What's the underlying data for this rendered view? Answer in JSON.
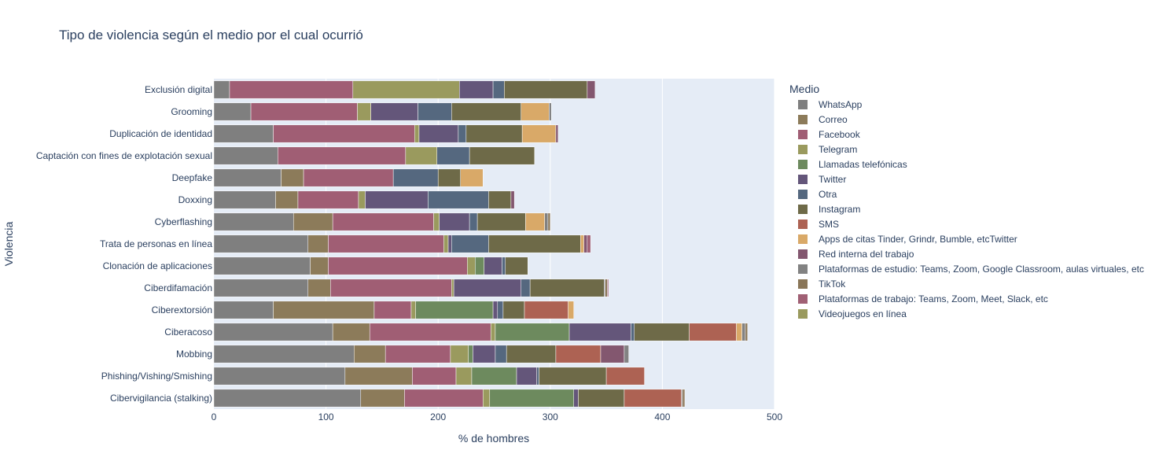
{
  "chart_data": {
    "type": "bar",
    "orientation": "horizontal",
    "barmode": "stack",
    "title": "Tipo de violencia según el medio por el cual ocurrió",
    "xlabel": "% de hombres",
    "ylabel": "Violencia",
    "xlim": [
      0,
      500
    ],
    "xticks": [
      0,
      100,
      200,
      300,
      400,
      500
    ],
    "grid": true,
    "legend_title": "Medio",
    "legend_position": "right",
    "categories": [
      "Exclusión digital",
      "Grooming",
      "Duplicación de identidad",
      "Captación con fines de explotación sexual",
      "Deepfake",
      "Doxxing",
      "Cyberflashing",
      "Trata de personas en línea",
      "Clonación de aplicaciones",
      "Ciberdifamación",
      "Ciberextorsión",
      "Ciberacoso",
      "Mobbing",
      "Phishing/Vishing/Smishing",
      "Cibervigilancia (stalking)"
    ],
    "series": [
      {
        "name": "WhatsApp",
        "color": "#7f7f7f",
        "values": [
          14,
          33,
          53,
          57,
          60,
          55,
          71,
          84,
          86,
          84,
          53,
          106,
          125,
          117,
          131
        ]
      },
      {
        "name": "Correo",
        "color": "#8c7b5a",
        "values": [
          0,
          0,
          0,
          0,
          20,
          20,
          35,
          18,
          16,
          20,
          90,
          33,
          28,
          60,
          39
        ]
      },
      {
        "name": "Facebook",
        "color": "#a05e74",
        "values": [
          110,
          95,
          126,
          114,
          80,
          54,
          90,
          103,
          124,
          108,
          33,
          108,
          58,
          39,
          70
        ]
      },
      {
        "name": "Telegram",
        "color": "#9a9a5e",
        "values": [
          95,
          12,
          4,
          28,
          0,
          6,
          5,
          4,
          7,
          2,
          4,
          4,
          16,
          14,
          6
        ]
      },
      {
        "name": "Llamadas telefónicas",
        "color": "#6d8a5e",
        "values": [
          0,
          0,
          0,
          0,
          0,
          0,
          0,
          0,
          8,
          0,
          69,
          66,
          4,
          40,
          75
        ]
      },
      {
        "name": "Twitter",
        "color": "#64567a",
        "values": [
          30,
          42,
          35,
          0,
          0,
          56,
          27,
          3,
          16,
          60,
          4,
          55,
          20,
          18,
          4
        ]
      },
      {
        "name": "Otra",
        "color": "#55687f",
        "values": [
          10,
          30,
          7,
          29,
          40,
          54,
          7,
          33,
          3,
          8,
          5,
          3,
          10,
          2,
          0
        ]
      },
      {
        "name": "Instagram",
        "color": "#6e6a48",
        "values": [
          74,
          62,
          50,
          58,
          20,
          20,
          43,
          82,
          20,
          66,
          19,
          49,
          44,
          60,
          41
        ]
      },
      {
        "name": "SMS",
        "color": "#ad6253",
        "values": [
          0,
          0,
          0,
          0,
          0,
          0,
          0,
          0,
          0,
          0,
          39,
          42,
          40,
          34,
          51
        ]
      },
      {
        "name": "Apps de citas Tinder, Grindr, Bumble, etcTwitter",
        "color": "#d9a968",
        "values": [
          0,
          25,
          30,
          0,
          20,
          0,
          17,
          3,
          0,
          0,
          5,
          5,
          0,
          0,
          0
        ]
      },
      {
        "name": "Red interna del trabajo",
        "color": "#83576f",
        "values": [
          7,
          0,
          2,
          0,
          0,
          3,
          0,
          3,
          0,
          0,
          0,
          0,
          21,
          0,
          0
        ]
      },
      {
        "name": "Plataformas de estudio: Teams, Zoom, Google Classroom, aulas virtuales, etc",
        "color": "#828282",
        "values": [
          0,
          2,
          0,
          0,
          0,
          0,
          3,
          0,
          0,
          1,
          0,
          3,
          4,
          0,
          1
        ]
      },
      {
        "name": "TikTok",
        "color": "#8a7658",
        "values": [
          0,
          0,
          0,
          0,
          0,
          0,
          2,
          0,
          0,
          2,
          0,
          2,
          0,
          0,
          2
        ]
      },
      {
        "name": "Plataformas de trabajo: Teams, Zoom, Meet, Slack, etc",
        "color": "#a06074",
        "values": [
          0,
          0,
          0,
          0,
          0,
          0,
          0,
          3,
          0,
          1,
          0,
          0,
          0,
          0,
          0
        ]
      },
      {
        "name": "Videojuegos en línea",
        "color": "#9a9a5e",
        "values": [
          0,
          0,
          0,
          0,
          0,
          0,
          0,
          0,
          0,
          0,
          0,
          0,
          0,
          0,
          0
        ]
      }
    ]
  }
}
